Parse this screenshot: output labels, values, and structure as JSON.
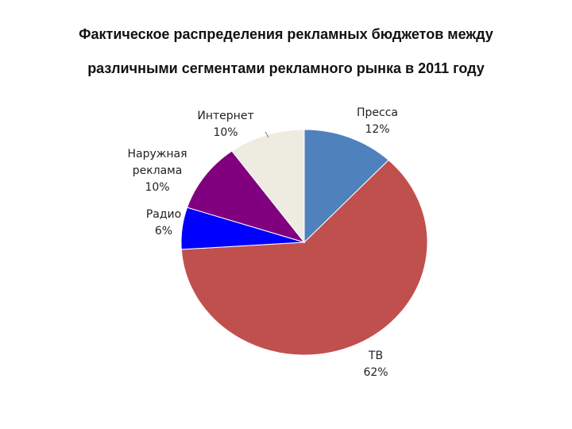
{
  "title_lines": [
    "Фактическое распределения рекламных бюджетов между",
    "различными сегментами рекламного рынка в 2011 году"
  ],
  "chart_data": {
    "type": "pie",
    "title": "Фактическое распределения рекламных бюджетов между различными сегментами рекламного рынка в 2011 году",
    "slices": [
      {
        "label": "Пресса",
        "value": 12,
        "display": "12%",
        "color": "#4F81BD"
      },
      {
        "label": "ТВ",
        "value": 62,
        "display": "62%",
        "color": "#C0504D"
      },
      {
        "label": "Радио",
        "value": 6,
        "display": "6%",
        "color": "#0000FF"
      },
      {
        "label": "Наружная реклама",
        "label_lines": [
          "Наружная",
          "реклама"
        ],
        "value": 10,
        "display": "10%",
        "color": "#800080"
      },
      {
        "label": "Интернет",
        "value": 10,
        "display": "10%",
        "color": "#EEECE1"
      }
    ],
    "start": "12 o'clock",
    "direction": "clockwise",
    "legend": "none"
  }
}
